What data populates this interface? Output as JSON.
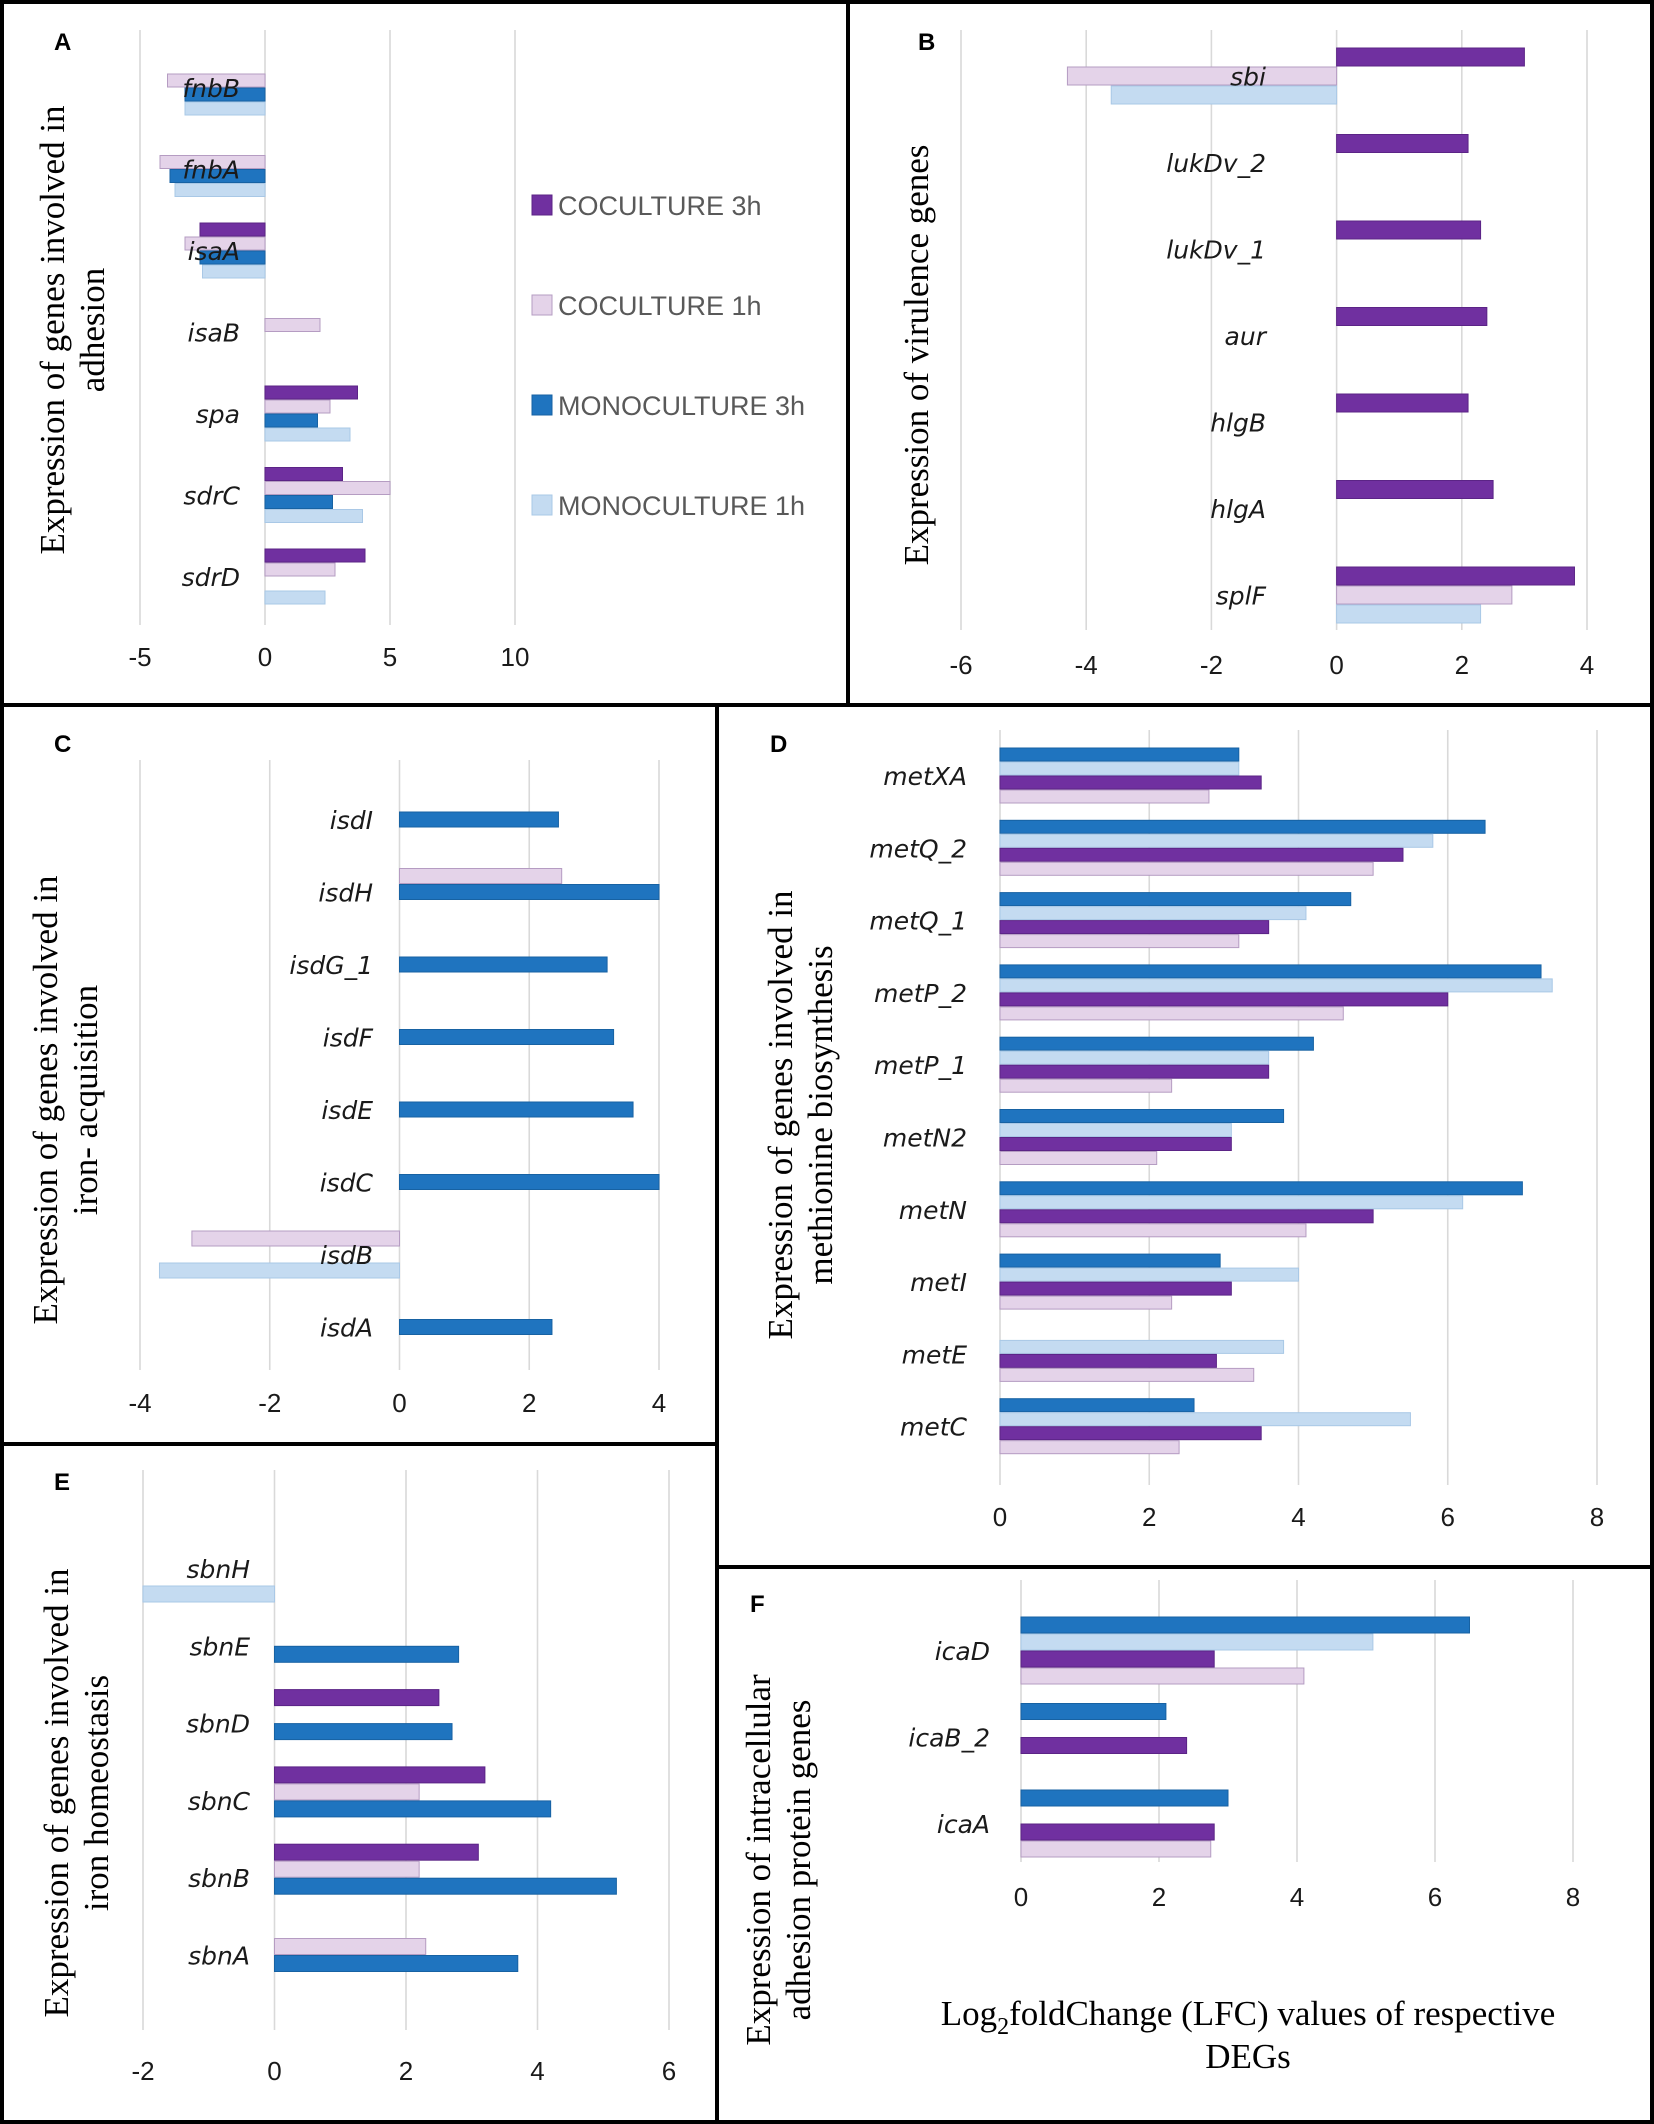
{
  "figure": {
    "footer": {
      "prefix": "Log",
      "subscript": "2",
      "suffix": "foldChange (LFC) values of respective",
      "line2": "DEGs"
    }
  },
  "series_info": {
    "CO3": {
      "label": "COCULTURE 3h",
      "color": "#7030a0",
      "stroke": "#5b2486"
    },
    "CO1": {
      "label": "COCULTURE 1h",
      "color": "#e4d3e9",
      "stroke": "#b59cc2"
    },
    "MO3": {
      "label": "MONOCULTURE 3h",
      "color": "#1f74bf",
      "stroke": "#1762a3"
    },
    "MO1": {
      "label": "MONOCULTURE 1h",
      "color": "#c4dbf1",
      "stroke": "#a9c8e6"
    }
  },
  "legend_order": [
    "CO3",
    "CO1",
    "MO3",
    "MO1"
  ],
  "chart_data": [
    {
      "id": "A",
      "letter": "A",
      "type": "bar",
      "orientation": "horizontal",
      "ylabel": [
        "Expression of genes involved in",
        "adhesion"
      ],
      "xlim": [
        -5,
        10
      ],
      "xticks": [
        -5,
        0,
        5,
        10
      ],
      "categories": [
        "fnbB",
        "fnbA",
        "isaA",
        "isaB",
        "spa",
        "sdrC",
        "sdrD"
      ],
      "bar_order": [
        "CO3",
        "CO1",
        "MO3",
        "MO1"
      ],
      "series": [
        {
          "key": "CO3",
          "values": [
            null,
            null,
            -2.6,
            null,
            3.7,
            3.1,
            4.0
          ]
        },
        {
          "key": "CO1",
          "values": [
            -3.9,
            -4.2,
            -3.2,
            2.2,
            2.6,
            5.0,
            2.8
          ]
        },
        {
          "key": "MO3",
          "values": [
            -3.2,
            -3.8,
            -2.6,
            null,
            2.1,
            2.7,
            null
          ]
        },
        {
          "key": "MO1",
          "values": [
            -3.2,
            -3.6,
            -2.5,
            null,
            3.4,
            3.9,
            2.4
          ]
        }
      ]
    },
    {
      "id": "B",
      "letter": "B",
      "type": "bar",
      "orientation": "horizontal",
      "ylabel": [
        "Expression of  virulence genes"
      ],
      "xlim": [
        -6,
        4
      ],
      "xticks": [
        -6,
        -4,
        -2,
        0,
        2,
        4
      ],
      "categories": [
        "sbi",
        "lukDv_2",
        "lukDv_1",
        "aur",
        "hlgB",
        "hlgA",
        "splF"
      ],
      "bar_order": [
        "CO3",
        "CO1",
        "MO1"
      ],
      "series": [
        {
          "key": "CO3",
          "values": [
            3.0,
            2.1,
            2.3,
            2.4,
            2.1,
            2.5,
            3.8
          ]
        },
        {
          "key": "CO1",
          "values": [
            -4.3,
            null,
            null,
            null,
            null,
            null,
            2.8
          ]
        },
        {
          "key": "MO1",
          "values": [
            -3.6,
            null,
            null,
            null,
            null,
            null,
            2.3
          ]
        }
      ]
    },
    {
      "id": "C",
      "letter": "C",
      "type": "bar",
      "orientation": "horizontal",
      "ylabel": [
        "Expression of genes involved in",
        "iron- acquisition"
      ],
      "xlim": [
        -4,
        4
      ],
      "xticks": [
        -4,
        -2,
        0,
        2,
        4
      ],
      "categories": [
        "isdI",
        "isdH",
        "isdG_1",
        "isdF",
        "isdE",
        "isdC",
        "isdB",
        "isdA"
      ],
      "bar_order": [
        "CO1",
        "MO3",
        "MO1"
      ],
      "series": [
        {
          "key": "CO1",
          "values": [
            null,
            2.5,
            null,
            null,
            null,
            null,
            -3.2,
            null
          ]
        },
        {
          "key": "MO3",
          "values": [
            2.45,
            4.0,
            3.2,
            3.3,
            3.6,
            4.0,
            null,
            2.35
          ]
        },
        {
          "key": "MO1",
          "values": [
            null,
            null,
            null,
            null,
            null,
            null,
            -3.7,
            null
          ]
        }
      ]
    },
    {
      "id": "D",
      "letter": "D",
      "type": "bar",
      "orientation": "horizontal",
      "ylabel": [
        "Expression of genes involved in",
        "methionine biosynthesis"
      ],
      "xlim": [
        0,
        8
      ],
      "xticks": [
        0,
        2,
        4,
        6,
        8
      ],
      "categories": [
        "metXA",
        "metQ_2",
        "metQ_1",
        "metP_2",
        "metP_1",
        "metN2",
        "metN",
        "metI",
        "metE",
        "metC"
      ],
      "bar_order": [
        "MO3",
        "MO1",
        "CO3",
        "CO1"
      ],
      "series": [
        {
          "key": "MO3",
          "values": [
            3.2,
            6.5,
            4.7,
            7.25,
            4.2,
            3.8,
            7.0,
            2.95,
            null,
            2.6
          ]
        },
        {
          "key": "MO1",
          "values": [
            3.2,
            5.8,
            4.1,
            7.4,
            3.6,
            3.1,
            6.2,
            4.0,
            3.8,
            5.5
          ]
        },
        {
          "key": "CO3",
          "values": [
            3.5,
            5.4,
            3.6,
            6.0,
            3.6,
            3.1,
            5.0,
            3.1,
            2.9,
            3.5
          ]
        },
        {
          "key": "CO1",
          "values": [
            2.8,
            5.0,
            3.2,
            4.6,
            2.3,
            2.1,
            4.1,
            2.3,
            3.4,
            2.4
          ]
        }
      ]
    },
    {
      "id": "E",
      "letter": "E",
      "type": "bar",
      "orientation": "horizontal",
      "ylabel": [
        "Expression of genes involved in",
        "iron homeostasis"
      ],
      "xlim": [
        -2,
        6
      ],
      "xticks": [
        -2,
        0,
        2,
        4,
        6
      ],
      "categories": [
        "sbnH",
        "sbnE",
        "sbnD",
        "sbnC",
        "sbnB",
        "sbnA"
      ],
      "bar_order": [
        "CO3",
        "CO1",
        "MO3",
        "MO1"
      ],
      "series": [
        {
          "key": "CO3",
          "values": [
            null,
            null,
            2.5,
            3.2,
            3.1,
            null
          ]
        },
        {
          "key": "CO1",
          "values": [
            null,
            null,
            null,
            2.2,
            2.2,
            2.3
          ]
        },
        {
          "key": "MO3",
          "values": [
            null,
            2.8,
            2.7,
            4.2,
            5.2,
            3.7
          ]
        },
        {
          "key": "MO1",
          "values": [
            -2.0,
            null,
            null,
            null,
            null,
            null
          ]
        }
      ]
    },
    {
      "id": "F",
      "letter": "F",
      "type": "bar",
      "orientation": "horizontal",
      "ylabel": [
        "Expression of intracellular",
        "adhesion protein genes"
      ],
      "xlim": [
        0,
        8
      ],
      "xticks": [
        0,
        2,
        4,
        6,
        8
      ],
      "categories": [
        "icaD",
        "icaB_2",
        "icaA"
      ],
      "bar_order": [
        "MO3",
        "MO1",
        "CO3",
        "CO1"
      ],
      "series": [
        {
          "key": "MO3",
          "values": [
            6.5,
            2.1,
            3.0
          ]
        },
        {
          "key": "MO1",
          "values": [
            5.1,
            null,
            null
          ]
        },
        {
          "key": "CO3",
          "values": [
            2.8,
            2.4,
            2.8
          ]
        },
        {
          "key": "CO1",
          "values": [
            4.1,
            null,
            2.75
          ]
        }
      ]
    }
  ]
}
